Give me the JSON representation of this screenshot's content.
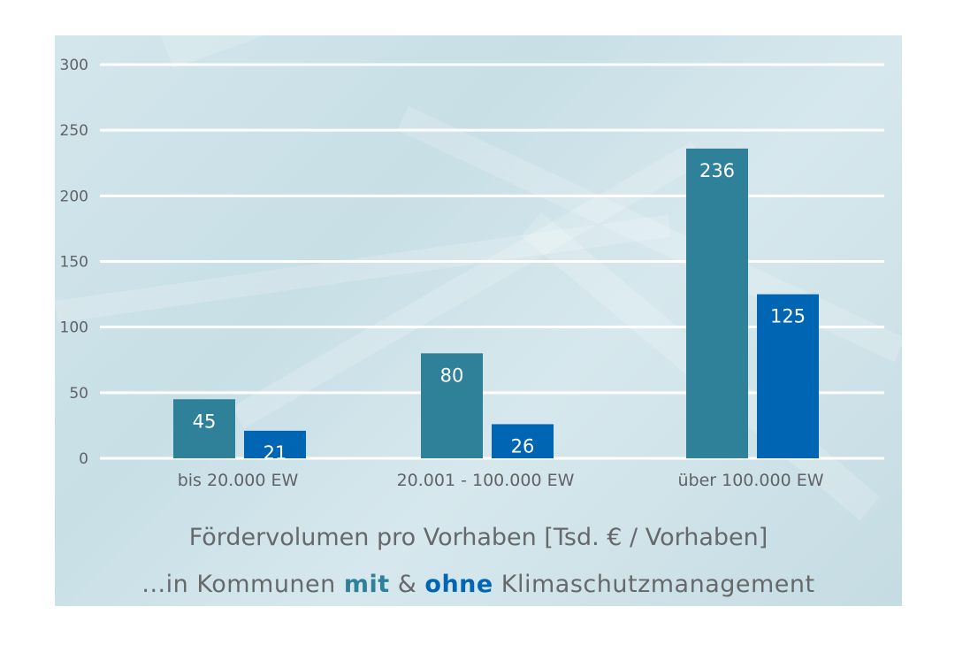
{
  "chart_data": {
    "type": "bar",
    "categories": [
      "bis 20.000 EW",
      "20.001 - 100.000 EW",
      "über 100.000 EW"
    ],
    "series": [
      {
        "name": "mit",
        "values": [
          45,
          80,
          236
        ],
        "color": "#2f8199"
      },
      {
        "name": "ohne",
        "values": [
          21,
          26,
          125
        ],
        "color": "#0066b3"
      }
    ],
    "ylim": [
      0,
      300
    ],
    "yticks": [
      0,
      50,
      100,
      150,
      200,
      250,
      300
    ],
    "grid": true,
    "gridColor": "#ffffff",
    "title": "Fördervolumen pro Vorhaben [Tsd. € / Vorhaben]",
    "subtitle": {
      "prefix": "...in Kommunen ",
      "mit": "mit",
      "middle": " & ",
      "ohne": "ohne",
      "suffix": " Klimaschutzmanagement"
    }
  }
}
